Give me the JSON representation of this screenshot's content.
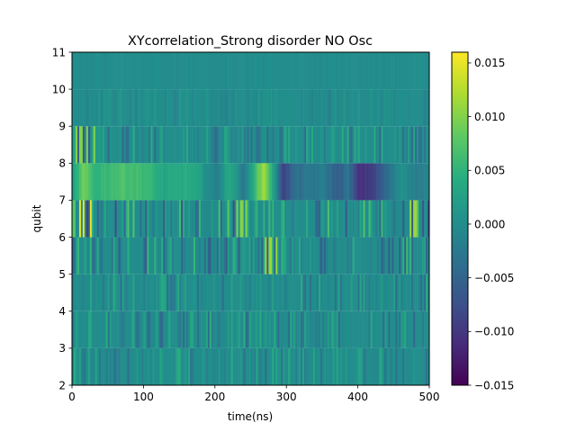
{
  "chart_data": {
    "type": "heatmap",
    "title": "XYcorrelation_Strong disorder NO Osc",
    "xlabel": "time(ns)",
    "ylabel": "qubit",
    "xlim": [
      0,
      500
    ],
    "ylim": [
      2,
      11
    ],
    "x_ticks": [
      "0",
      "100",
      "200",
      "300",
      "400",
      "500"
    ],
    "y_ticks": [
      "2",
      "3",
      "4",
      "5",
      "6",
      "7",
      "8",
      "9",
      "10",
      "11"
    ],
    "colormap": "viridis",
    "color_range": [
      -0.015,
      0.016
    ],
    "colorbar_ticks": [
      "0.015",
      "0.010",
      "0.005",
      "0.000",
      "−0.005",
      "−0.010",
      "−0.015"
    ],
    "colorbar_tick_values": [
      0.015,
      0.01,
      0.005,
      0.0,
      -0.005,
      -0.01,
      -0.015
    ],
    "grid": false,
    "rows": [
      {
        "qubit_range": [
          2,
          3
        ],
        "amplitude": 0.004
      },
      {
        "qubit_range": [
          3,
          4
        ],
        "amplitude": 0.0045
      },
      {
        "qubit_range": [
          4,
          5
        ],
        "amplitude": 0.004
      },
      {
        "qubit_range": [
          5,
          6
        ],
        "amplitude": 0.006
      },
      {
        "qubit_range": [
          6,
          7
        ],
        "amplitude": 0.008
      },
      {
        "qubit_range": [
          7,
          8
        ],
        "amplitude": 0.012
      },
      {
        "qubit_range": [
          8,
          9
        ],
        "amplitude": 0.0045
      },
      {
        "qubit_range": [
          9,
          10
        ],
        "amplitude": 0.0015
      },
      {
        "qubit_range": [
          10,
          11
        ],
        "amplitude": 0.0004
      }
    ],
    "row_7_8_profile": [
      {
        "t": 0,
        "v": 0.002
      },
      {
        "t": 15,
        "v": 0.009
      },
      {
        "t": 30,
        "v": 0.005
      },
      {
        "t": 50,
        "v": 0.006
      },
      {
        "t": 70,
        "v": 0.007
      },
      {
        "t": 100,
        "v": 0.006
      },
      {
        "t": 130,
        "v": 0.003
      },
      {
        "t": 160,
        "v": 0.004
      },
      {
        "t": 180,
        "v": 0.002
      },
      {
        "t": 200,
        "v": -0.002
      },
      {
        "t": 220,
        "v": 0.004
      },
      {
        "t": 240,
        "v": -0.003
      },
      {
        "t": 255,
        "v": 0.006
      },
      {
        "t": 268,
        "v": 0.012
      },
      {
        "t": 280,
        "v": 0.003
      },
      {
        "t": 295,
        "v": -0.009
      },
      {
        "t": 310,
        "v": -0.004
      },
      {
        "t": 330,
        "v": -0.003
      },
      {
        "t": 350,
        "v": -0.002
      },
      {
        "t": 370,
        "v": -0.006
      },
      {
        "t": 385,
        "v": -0.003
      },
      {
        "t": 400,
        "v": -0.011
      },
      {
        "t": 420,
        "v": -0.009
      },
      {
        "t": 440,
        "v": -0.004
      },
      {
        "t": 460,
        "v": 0.001
      },
      {
        "t": 480,
        "v": -0.002
      },
      {
        "t": 500,
        "v": -0.001
      }
    ],
    "highlights": [
      {
        "qubit_range": [
          6,
          7
        ],
        "t": [
          10,
          25
        ],
        "v": 0.015
      },
      {
        "qubit_range": [
          8,
          9
        ],
        "t": [
          5,
          30
        ],
        "v": 0.01
      },
      {
        "qubit_range": [
          5,
          6
        ],
        "t": [
          270,
          285
        ],
        "v": 0.011
      },
      {
        "qubit_range": [
          6,
          7
        ],
        "t": [
          230,
          245
        ],
        "v": 0.01
      },
      {
        "qubit_range": [
          6,
          7
        ],
        "t": [
          470,
          500
        ],
        "v": 0.011
      }
    ]
  }
}
